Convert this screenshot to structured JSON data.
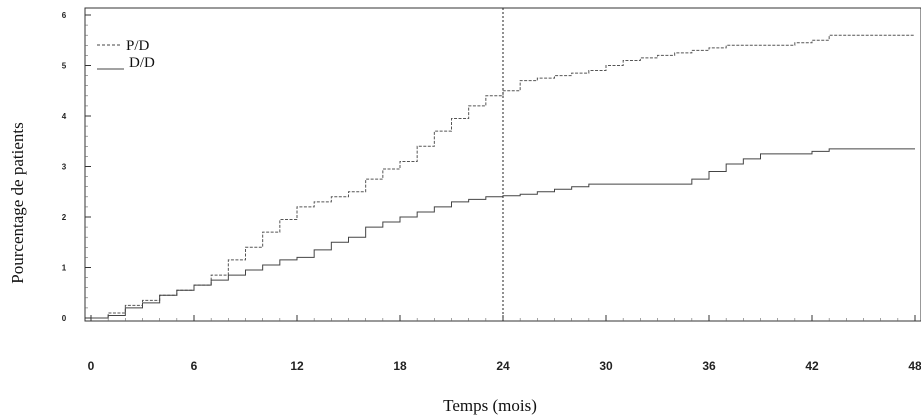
{
  "chart_data": {
    "type": "line",
    "title": "",
    "xlabel": "Temps (mois)",
    "ylabel": "Pourcentage de patients",
    "xlim": [
      0,
      48
    ],
    "ylim": [
      0,
      6
    ],
    "x_ticks": [
      0,
      6,
      12,
      18,
      24,
      30,
      36,
      42,
      48
    ],
    "y_ticks": [
      0,
      1,
      2,
      3,
      4,
      5,
      6
    ],
    "reference_line_x": 24,
    "legend_position": "top-left",
    "grid": false,
    "series": [
      {
        "name": "P/D",
        "style": "dashed",
        "color": "#555555",
        "x": [
          0,
          1,
          2,
          3,
          4,
          5,
          6,
          7,
          8,
          9,
          10,
          11,
          12,
          13,
          14,
          15,
          16,
          17,
          18,
          19,
          20,
          21,
          22,
          23,
          24,
          25,
          26,
          27,
          28,
          29,
          30,
          31,
          32,
          33,
          34,
          35,
          36,
          37,
          38,
          39,
          40,
          41,
          42,
          43,
          44,
          45,
          46,
          47,
          48
        ],
        "y": [
          0.0,
          0.1,
          0.25,
          0.35,
          0.45,
          0.55,
          0.65,
          0.85,
          1.15,
          1.4,
          1.7,
          1.95,
          2.2,
          2.3,
          2.4,
          2.5,
          2.75,
          2.95,
          3.1,
          3.4,
          3.7,
          3.95,
          4.2,
          4.4,
          4.5,
          4.7,
          4.75,
          4.8,
          4.85,
          4.9,
          5.0,
          5.1,
          5.15,
          5.2,
          5.25,
          5.3,
          5.35,
          5.4,
          5.4,
          5.4,
          5.4,
          5.45,
          5.5,
          5.6,
          5.6,
          5.6,
          5.6,
          5.6,
          5.6
        ]
      },
      {
        "name": "D/D",
        "style": "solid",
        "color": "#444444",
        "x": [
          0,
          1,
          2,
          3,
          4,
          5,
          6,
          7,
          8,
          9,
          10,
          11,
          12,
          13,
          14,
          15,
          16,
          17,
          18,
          19,
          20,
          21,
          22,
          23,
          24,
          25,
          26,
          27,
          28,
          29,
          30,
          31,
          32,
          33,
          34,
          35,
          36,
          37,
          38,
          39,
          40,
          41,
          42,
          43,
          44,
          45,
          46,
          47,
          48
        ],
        "y": [
          0.0,
          0.05,
          0.2,
          0.3,
          0.45,
          0.55,
          0.65,
          0.75,
          0.85,
          0.95,
          1.05,
          1.15,
          1.2,
          1.35,
          1.5,
          1.6,
          1.8,
          1.9,
          2.0,
          2.1,
          2.2,
          2.3,
          2.35,
          2.4,
          2.42,
          2.45,
          2.5,
          2.55,
          2.6,
          2.65,
          2.65,
          2.65,
          2.65,
          2.65,
          2.65,
          2.75,
          2.9,
          3.05,
          3.15,
          3.25,
          3.25,
          3.25,
          3.3,
          3.35,
          3.35,
          3.35,
          3.35,
          3.35,
          3.35
        ]
      }
    ]
  }
}
